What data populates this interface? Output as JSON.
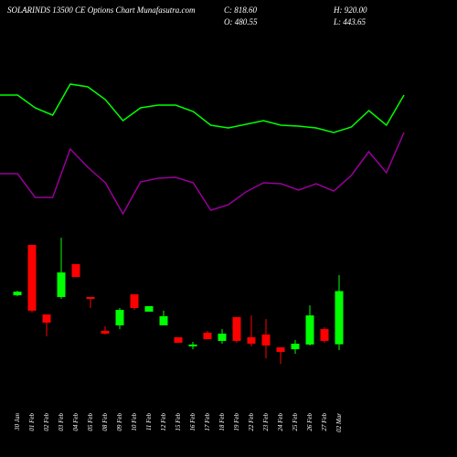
{
  "chart_data": [
    {
      "type": "candlestick",
      "title": "SOLARINDS 13500 CE Options Chart Munafasutra.com",
      "close_text": "C: 818.60",
      "open_text": "O: 480.55",
      "high_text": "H: 920.00",
      "low_text": "L: 443.65",
      "categories": [
        "30 Jan",
        "01 Feb",
        "02 Feb",
        "03 Feb",
        "04 Feb",
        "05 Feb",
        "08 Feb",
        "09 Feb",
        "10 Feb",
        "11 Feb",
        "12 Feb",
        "15 Feb",
        "16 Feb",
        "17 Feb",
        "18 Feb",
        "19 Feb",
        "22 Feb",
        "23 Feb",
        "24 Feb",
        "25 Feb",
        "26 Feb",
        "27 Feb",
        "02 Mar"
      ],
      "open": [
        792,
        1112,
        670,
        781,
        990,
        781,
        566,
        601,
        798,
        688,
        601,
        525,
        467,
        554,
        502,
        653,
        525,
        542,
        461,
        449,
        479,
        577,
        480.55
      ],
      "close": [
        815,
        694,
        618,
        937,
        908,
        769,
        548,
        699,
        711,
        723,
        659,
        490,
        479,
        513,
        548,
        502,
        484,
        473,
        432,
        484,
        664,
        502,
        818.6
      ],
      "high": [
        821,
        1112,
        670,
        1158,
        990,
        781,
        595,
        711,
        798,
        723,
        694,
        525,
        496,
        566,
        577,
        653,
        664,
        641,
        461,
        508,
        728,
        589,
        920
      ],
      "low": [
        786,
        682,
        531,
        769,
        908,
        711,
        542,
        577,
        699,
        688,
        601,
        490,
        449,
        513,
        484,
        490,
        467,
        391,
        356,
        420,
        473,
        490,
        443.65
      ],
      "up_color": "#00ff00",
      "down_color": "#ff0000",
      "ylim": [
        -236,
        2669
      ]
    },
    {
      "type": "line",
      "ylim": [
        0,
        500
      ],
      "series": [
        {
          "color": "#00ff00",
          "values": [
            396,
            396,
            382,
            374,
            408,
            405,
            391,
            368,
            382,
            385,
            385,
            378,
            363,
            360,
            364,
            368,
            363,
            362,
            360,
            355,
            361,
            379,
            363,
            396
          ]
        },
        {
          "color": "#990099",
          "values": [
            310,
            310,
            284,
            284,
            337,
            317,
            300,
            266,
            301,
            305,
            306,
            300,
            270,
            276,
            290,
            300,
            299,
            292,
            299,
            291,
            308,
            334,
            311,
            355
          ]
        }
      ]
    }
  ]
}
